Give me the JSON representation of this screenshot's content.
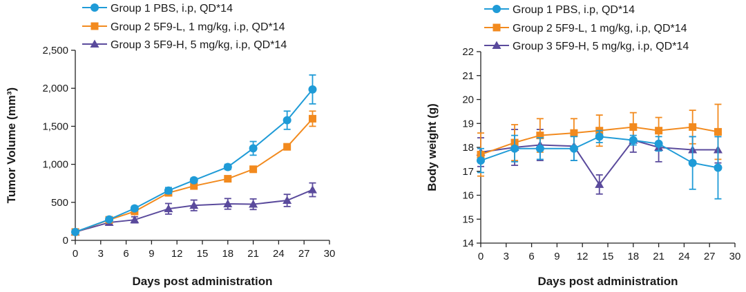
{
  "chart_data": [
    {
      "type": "line",
      "title": "",
      "xlabel": "Days post administration",
      "ylabel": "Tumor Volume (mm³)",
      "xlim": [
        0,
        30
      ],
      "ylim": [
        0,
        2500
      ],
      "xticks": [
        "0",
        "3",
        "6",
        "9",
        "12",
        "15",
        "18",
        "21",
        "24",
        "27",
        "30"
      ],
      "yticks": [
        "0",
        "500",
        "1,000",
        "1,500",
        "2,000",
        "2,500"
      ],
      "grid": false,
      "legend": "top-left",
      "series": [
        {
          "name": "Group 1 PBS, i.p, QD*14",
          "color": "#1f9bd7",
          "marker": "circle",
          "x": [
            0,
            4,
            7,
            11,
            14,
            18,
            21,
            25,
            28
          ],
          "values": [
            110,
            275,
            420,
            655,
            790,
            965,
            1210,
            1580,
            1985
          ],
          "errors": [
            15,
            25,
            30,
            40,
            30,
            35,
            90,
            120,
            190
          ]
        },
        {
          "name": "Group 2 5F9-L, 1 mg/kg, i.p, QD*14",
          "color": "#f28a1e",
          "marker": "square",
          "x": [
            0,
            4,
            7,
            11,
            14,
            18,
            21,
            25,
            28
          ],
          "values": [
            110,
            270,
            380,
            625,
            715,
            810,
            935,
            1230,
            1600
          ],
          "errors": [
            15,
            20,
            25,
            35,
            30,
            30,
            40,
            40,
            100
          ]
        },
        {
          "name": "Group 3 5F9-H, 5 mg/kg, i.p, QD*14",
          "color": "#5a4a9c",
          "marker": "triangle",
          "x": [
            0,
            4,
            7,
            11,
            14,
            18,
            21,
            25,
            28
          ],
          "values": [
            110,
            235,
            270,
            415,
            460,
            480,
            475,
            525,
            665
          ],
          "errors": [
            15,
            30,
            40,
            70,
            70,
            70,
            70,
            80,
            90
          ]
        }
      ]
    },
    {
      "type": "line",
      "title": "",
      "xlabel": "Days post administration",
      "ylabel": "Body weight (g)",
      "xlim": [
        0,
        30
      ],
      "ylim": [
        14,
        22
      ],
      "xticks": [
        "0",
        "3",
        "6",
        "9",
        "12",
        "15",
        "18",
        "21",
        "24",
        "27",
        "30"
      ],
      "yticks": [
        "14",
        "15",
        "16",
        "17",
        "18",
        "19",
        "20",
        "21",
        "22"
      ],
      "grid": false,
      "legend": "top-left",
      "series": [
        {
          "name": "Group 1 PBS, i.p, QD*14",
          "color": "#1f9bd7",
          "marker": "circle",
          "x": [
            0,
            4,
            7,
            11,
            14,
            18,
            21,
            25,
            28
          ],
          "values": [
            17.45,
            17.95,
            17.95,
            17.95,
            18.45,
            18.3,
            18.15,
            17.35,
            17.15
          ],
          "errors": [
            0.5,
            0.55,
            0.45,
            0.5,
            0.25,
            0.2,
            0.3,
            1.1,
            1.3
          ]
        },
        {
          "name": "Group 2 5F9-L, 1 mg/kg, i.p, QD*14",
          "color": "#f28a1e",
          "marker": "square",
          "x": [
            0,
            4,
            7,
            11,
            14,
            18,
            21,
            25,
            28
          ],
          "values": [
            17.7,
            18.2,
            18.5,
            18.6,
            18.7,
            18.85,
            18.7,
            18.85,
            18.65
          ],
          "errors": [
            0.9,
            0.75,
            0.7,
            0.6,
            0.65,
            0.6,
            0.55,
            0.7,
            1.15
          ]
        },
        {
          "name": "Group 3 5F9-H, 5 mg/kg, i.p, QD*14",
          "color": "#5a4a9c",
          "marker": "triangle",
          "x": [
            0,
            4,
            7,
            11,
            14,
            18,
            21,
            25,
            28
          ],
          "values": [
            17.8,
            18.0,
            18.1,
            18.05,
            16.45,
            18.3,
            18.0,
            17.9,
            17.9
          ],
          "errors": [
            0.6,
            0.75,
            0.65,
            0.6,
            0.4,
            0.5,
            0.6,
            0.55,
            0.55
          ]
        }
      ]
    }
  ]
}
